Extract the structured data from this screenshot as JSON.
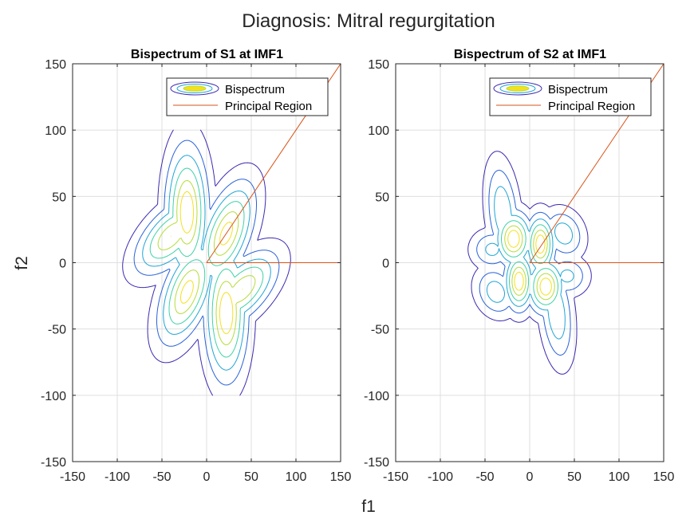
{
  "figure": {
    "suptitle": "Diagnosis: Mitral regurgitation",
    "xlabel": "f1",
    "ylabel": "f2"
  },
  "colors": {
    "contour_levels": [
      "#3b2ab0",
      "#2a62d8",
      "#1fa5d6",
      "#3fd2a6",
      "#b5dc3c",
      "#f5e01e"
    ],
    "principal_region": "#d95319",
    "grid": "#dfdfdf",
    "axis": "#262626"
  },
  "chart_data": [
    {
      "type": "contour",
      "title": "Bispectrum of S1 at IMF1",
      "xlim": [
        -150,
        150
      ],
      "ylim": [
        -150,
        150
      ],
      "xticks": [
        -150,
        -100,
        -50,
        0,
        50,
        100,
        150
      ],
      "yticks": [
        -150,
        -100,
        -50,
        0,
        50,
        100,
        150
      ],
      "grid": true,
      "legend": {
        "placement": "top-right",
        "entries": [
          "Bispectrum",
          "Principal Region"
        ]
      },
      "principal_region": {
        "diagonal": [
          [
            0,
            0
          ],
          [
            150,
            150
          ]
        ],
        "axis": [
          [
            0,
            0
          ],
          [
            150,
            0
          ]
        ]
      },
      "lobes": [
        {
          "cx": -22,
          "cy": 38,
          "rx": 16,
          "ry": 34,
          "angle": 0,
          "peak": 1.0
        },
        {
          "cx": 22,
          "cy": -38,
          "rx": 16,
          "ry": 34,
          "angle": 0,
          "peak": 1.0
        },
        {
          "cx": 22,
          "cy": 22,
          "rx": 16,
          "ry": 30,
          "angle": -35,
          "peak": 0.95
        },
        {
          "cx": -22,
          "cy": -22,
          "rx": 16,
          "ry": 30,
          "angle": -35,
          "peak": 0.95
        },
        {
          "cx": -40,
          "cy": 20,
          "rx": 14,
          "ry": 30,
          "angle": -60,
          "peak": 0.9
        },
        {
          "cx": 40,
          "cy": -20,
          "rx": 14,
          "ry": 30,
          "angle": -60,
          "peak": 0.9
        }
      ]
    },
    {
      "type": "contour",
      "title": "Bispectrum of S2 at IMF1",
      "xlim": [
        -150,
        150
      ],
      "ylim": [
        -150,
        150
      ],
      "xticks": [
        -150,
        -100,
        -50,
        0,
        50,
        100,
        150
      ],
      "yticks": [
        -150,
        -100,
        -50,
        0,
        50,
        100,
        150
      ],
      "grid": true,
      "legend": {
        "placement": "top-right",
        "entries": [
          "Bispectrum",
          "Principal Region"
        ]
      },
      "principal_region": {
        "diagonal": [
          [
            0,
            0
          ],
          [
            150,
            150
          ]
        ],
        "axis": [
          [
            0,
            0
          ],
          [
            150,
            0
          ]
        ]
      },
      "lobes": [
        {
          "cx": -18,
          "cy": 18,
          "rx": 14,
          "ry": 14,
          "angle": 0,
          "peak": 1.0
        },
        {
          "cx": 18,
          "cy": -18,
          "rx": 14,
          "ry": 14,
          "angle": 0,
          "peak": 1.0
        },
        {
          "cx": 12,
          "cy": 14,
          "rx": 11,
          "ry": 15,
          "angle": 0,
          "peak": 1.0
        },
        {
          "cx": -12,
          "cy": -14,
          "rx": 11,
          "ry": 15,
          "angle": 0,
          "peak": 1.0
        },
        {
          "cx": -30,
          "cy": 38,
          "rx": 12,
          "ry": 26,
          "angle": 10,
          "peak": 0.6
        },
        {
          "cx": 30,
          "cy": -38,
          "rx": 12,
          "ry": 26,
          "angle": 10,
          "peak": 0.6
        },
        {
          "cx": 38,
          "cy": 22,
          "rx": 16,
          "ry": 12,
          "angle": -20,
          "peak": 0.55
        },
        {
          "cx": -38,
          "cy": -22,
          "rx": 16,
          "ry": 12,
          "angle": -20,
          "peak": 0.55
        },
        {
          "cx": -42,
          "cy": 10,
          "rx": 16,
          "ry": 10,
          "angle": 0,
          "peak": 0.5
        },
        {
          "cx": 42,
          "cy": -10,
          "rx": 16,
          "ry": 10,
          "angle": 0,
          "peak": 0.5
        }
      ]
    }
  ]
}
